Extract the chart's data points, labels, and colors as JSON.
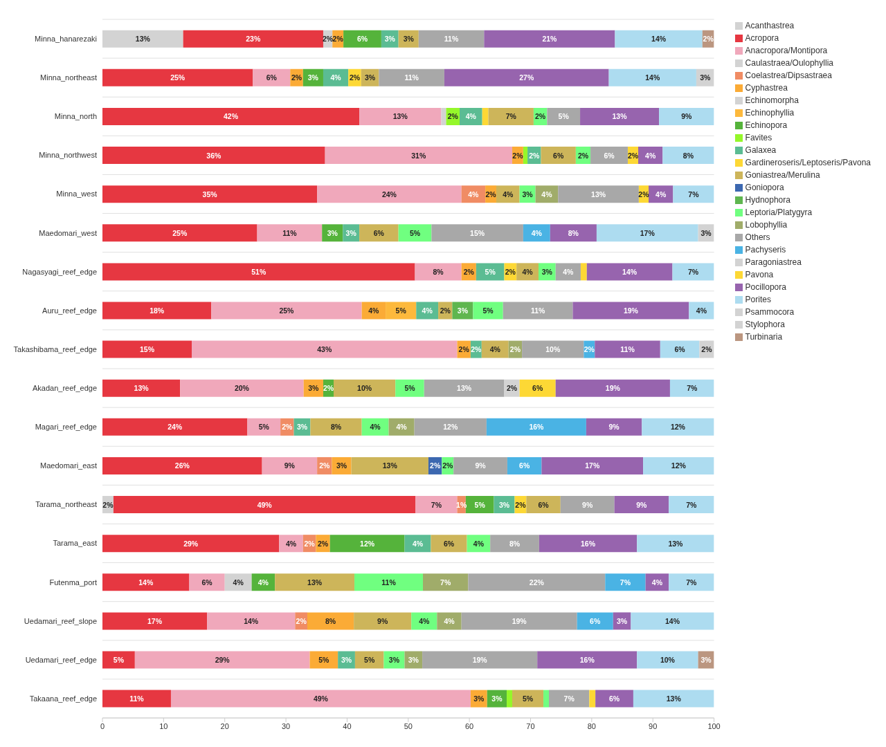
{
  "chart_data": {
    "type": "bar",
    "orientation": "horizontal",
    "stacked": true,
    "legend": "right",
    "grid": "y",
    "categories": [
      "Minna_hanarezaki",
      "Minna_northeast",
      "Minna_north",
      "Minna_northwest",
      "Minna_west",
      "Maedomari_west",
      "Nagasyagi_reef_edge",
      "Auru_reef_edge",
      "Takashibama_reef_edge",
      "Akadan_reef_edge",
      "Magari_reef_edge",
      "Maedomari_east",
      "Tarama_northeast",
      "Tarama_east",
      "Futenma_port",
      "Uedamari_reef_slope",
      "Uedamari_reef_edge",
      "Takaana_reef_edge"
    ],
    "xlim": [
      0,
      100
    ],
    "xticks": [
      0,
      10,
      20,
      30,
      40,
      50,
      60,
      70,
      80,
      90,
      100
    ],
    "series": [
      {
        "name": "Acanthastrea",
        "color": "#d3d3d3",
        "values": [
          13.2,
          null,
          null,
          null,
          null,
          null,
          null,
          null,
          null,
          null,
          null,
          null,
          1.8,
          null,
          null,
          null,
          null,
          null
        ],
        "value_labels": [
          "13%",
          null,
          null,
          null,
          null,
          null,
          null,
          null,
          null,
          null,
          null,
          null,
          "2%",
          null,
          null,
          null,
          null,
          null
        ]
      },
      {
        "name": "Acropora",
        "color": "#e63741",
        "values": [
          22.9,
          24.6,
          42.0,
          36.4,
          35.1,
          25.3,
          51.1,
          17.8,
          14.6,
          12.7,
          23.7,
          26.1,
          49.4,
          28.9,
          14.2,
          17.1,
          5.3,
          11.2
        ],
        "value_labels": [
          "23%",
          "25%",
          "42%",
          "36%",
          "35%",
          "25%",
          "51%",
          "18%",
          "15%",
          "13%",
          "24%",
          "26%",
          "49%",
          "29%",
          "14%",
          "17%",
          "5%",
          "11%"
        ]
      },
      {
        "name": "Anacropora/Montipora",
        "color": "#f0a8bb",
        "values": [
          null,
          6.1,
          13.4,
          30.6,
          23.6,
          10.6,
          7.6,
          24.6,
          43.4,
          20.2,
          5.4,
          9.0,
          6.8,
          3.9,
          5.8,
          14.4,
          28.6,
          49.0
        ],
        "value_labels": [
          null,
          "6%",
          "13%",
          "31%",
          "24%",
          "11%",
          "8%",
          "25%",
          "43%",
          "20%",
          "5%",
          "9%",
          "7%",
          "4%",
          "6%",
          "14%",
          "29%",
          "49%"
        ]
      },
      {
        "name": "Caulastraea/Oulophyllia",
        "color": "#d3d3d3",
        "values": [
          1.5,
          null,
          0.8,
          null,
          null,
          null,
          null,
          null,
          null,
          null,
          null,
          null,
          null,
          null,
          4.4,
          null,
          null,
          null
        ],
        "value_labels": [
          "2%",
          null,
          null,
          null,
          null,
          null,
          null,
          null,
          null,
          null,
          null,
          null,
          null,
          null,
          "4%",
          null,
          null,
          null
        ]
      },
      {
        "name": "Coelastrea/Dipsastraea",
        "color": "#f08c64",
        "values": [
          null,
          null,
          null,
          null,
          3.9,
          null,
          null,
          null,
          null,
          null,
          2.2,
          2.4,
          1.4,
          2.1,
          null,
          2.0,
          null,
          null
        ],
        "value_labels": [
          null,
          null,
          null,
          null,
          "4%",
          null,
          null,
          null,
          null,
          null,
          "2%",
          "2%",
          "1%",
          "2%",
          null,
          "2%",
          null,
          null
        ]
      },
      {
        "name": "Cyphastrea",
        "color": "#fbab36",
        "values": [
          1.8,
          2.1,
          null,
          1.8,
          1.8,
          null,
          2.4,
          3.9,
          2.2,
          3.2,
          null,
          3.2,
          null,
          2.3,
          null,
          7.6,
          4.6,
          2.7
        ],
        "value_labels": [
          "2%",
          "2%",
          null,
          "2%",
          "2%",
          null,
          "2%",
          "4%",
          "2%",
          "3%",
          null,
          "3%",
          null,
          "2%",
          null,
          "8%",
          "5%",
          "3%"
        ]
      },
      {
        "name": "Echinomorpha",
        "color": "#d3d3d3",
        "values": [
          null,
          null,
          null,
          null,
          null,
          null,
          null,
          null,
          null,
          null,
          null,
          null,
          null,
          null,
          null,
          null,
          null,
          null
        ],
        "value_labels": [
          null,
          null,
          null,
          null,
          null,
          null,
          null,
          null,
          null,
          null,
          null,
          null,
          null,
          null,
          null,
          null,
          null,
          null
        ]
      },
      {
        "name": "Echinophyllia",
        "color": "#fdb93c",
        "values": [
          null,
          null,
          null,
          null,
          null,
          null,
          null,
          5.0,
          null,
          null,
          null,
          null,
          null,
          null,
          null,
          null,
          null,
          null
        ],
        "value_labels": [
          null,
          null,
          null,
          null,
          null,
          null,
          null,
          "5%",
          null,
          null,
          null,
          null,
          null,
          null,
          null,
          null,
          null,
          null
        ]
      },
      {
        "name": "Echinopora",
        "color": "#55b33b",
        "values": [
          6.2,
          3.3,
          null,
          null,
          null,
          3.4,
          null,
          null,
          null,
          1.7,
          null,
          null,
          4.6,
          12.2,
          3.8,
          null,
          null,
          3.2
        ],
        "value_labels": [
          "6%",
          "3%",
          null,
          null,
          null,
          "3%",
          null,
          null,
          null,
          "2%",
          null,
          null,
          "5%",
          "12%",
          "4%",
          null,
          null,
          "3%"
        ]
      },
      {
        "name": "Favites",
        "color": "#95f72a",
        "values": [
          null,
          null,
          2.2,
          0.7,
          null,
          null,
          null,
          null,
          null,
          null,
          null,
          null,
          null,
          null,
          null,
          null,
          null,
          0.9
        ],
        "value_labels": [
          null,
          null,
          "2%",
          null,
          null,
          null,
          null,
          null,
          null,
          null,
          null,
          null,
          null,
          null,
          null,
          null,
          null,
          null
        ]
      },
      {
        "name": "Galaxea",
        "color": "#5bbc93",
        "values": [
          2.8,
          4.1,
          3.7,
          2.2,
          null,
          2.7,
          4.6,
          3.6,
          1.8,
          null,
          2.7,
          null,
          3.4,
          4.3,
          null,
          null,
          2.8,
          null
        ],
        "value_labels": [
          "3%",
          "4%",
          "4%",
          "2%",
          null,
          "3%",
          "5%",
          "4%",
          "2%",
          null,
          "3%",
          null,
          "3%",
          "4%",
          null,
          null,
          "3%",
          null
        ]
      },
      {
        "name": "Gardineroseris/Leptoseris/Pavona",
        "color": "#fdd835",
        "values": [
          null,
          2.1,
          1.0,
          null,
          null,
          null,
          2.0,
          null,
          null,
          null,
          null,
          null,
          1.9,
          null,
          null,
          null,
          null,
          null
        ],
        "value_labels": [
          null,
          "2%",
          null,
          null,
          null,
          null,
          "2%",
          null,
          null,
          null,
          null,
          null,
          "2%",
          null,
          null,
          null,
          null,
          null
        ]
      },
      {
        "name": "Goniastrea/Merulina",
        "color": "#cdb55a",
        "values": [
          3.3,
          2.9,
          7.4,
          5.7,
          3.8,
          6.4,
          3.6,
          2.3,
          4.4,
          10.1,
          8.4,
          12.6,
          5.6,
          5.9,
          13.0,
          9.4,
          4.7,
          5.1
        ],
        "value_labels": [
          "3%",
          "3%",
          "7%",
          "6%",
          "4%",
          "6%",
          "4%",
          "2%",
          "4%",
          "10%",
          "8%",
          "13%",
          "6%",
          "6%",
          "13%",
          "9%",
          "5%",
          "5%"
        ]
      },
      {
        "name": "Goniopora",
        "color": "#3c68b0",
        "values": [
          null,
          null,
          null,
          null,
          null,
          null,
          null,
          null,
          null,
          null,
          null,
          2.2,
          null,
          null,
          null,
          null,
          null,
          null
        ],
        "value_labels": [
          null,
          null,
          null,
          null,
          null,
          null,
          null,
          null,
          null,
          null,
          null,
          "2%",
          null,
          null,
          null,
          null,
          null,
          null
        ]
      },
      {
        "name": "Hydnophora",
        "color": "#5fb64f",
        "values": [
          null,
          null,
          null,
          null,
          null,
          null,
          null,
          3.4,
          null,
          null,
          null,
          null,
          null,
          null,
          null,
          null,
          null,
          null
        ],
        "value_labels": [
          null,
          null,
          null,
          null,
          null,
          null,
          null,
          "3%",
          null,
          null,
          null,
          null,
          null,
          null,
          null,
          null,
          null,
          null
        ]
      },
      {
        "name": "Leptoria/Platygyra",
        "color": "#70ff80",
        "values": [
          null,
          null,
          2.2,
          2.4,
          2.6,
          5.4,
          2.8,
          4.9,
          null,
          4.7,
          4.4,
          1.9,
          null,
          3.8,
          11.2,
          4.2,
          3.4,
          0.9
        ],
        "value_labels": [
          null,
          null,
          "2%",
          "2%",
          "3%",
          "5%",
          "3%",
          "5%",
          null,
          "5%",
          "4%",
          "2%",
          null,
          "4%",
          "11%",
          "4%",
          "3%",
          null
        ]
      },
      {
        "name": "Lobophyllia",
        "color": "#a0ac6a",
        "values": [
          null,
          null,
          null,
          null,
          3.7,
          null,
          null,
          null,
          2.2,
          null,
          4.2,
          null,
          null,
          null,
          7.4,
          4.0,
          2.9,
          null
        ],
        "value_labels": [
          null,
          null,
          null,
          null,
          "4%",
          null,
          null,
          null,
          "2%",
          null,
          "4%",
          null,
          null,
          null,
          "7%",
          "4%",
          "3%",
          null
        ]
      },
      {
        "name": "Others",
        "color": "#a8a8a8",
        "values": [
          10.7,
          10.7,
          5.4,
          6.1,
          13.2,
          15.0,
          4.1,
          11.4,
          10.1,
          13.1,
          11.8,
          8.8,
          8.8,
          8.0,
          22.4,
          18.9,
          18.8,
          6.6
        ],
        "value_labels": [
          "11%",
          "11%",
          "5%",
          "6%",
          "13%",
          "15%",
          "4%",
          "11%",
          "10%",
          "13%",
          "12%",
          "9%",
          "9%",
          "8%",
          "22%",
          "19%",
          "19%",
          "7%"
        ]
      },
      {
        "name": "Pachyseris",
        "color": "#4ab3e4",
        "values": [
          null,
          null,
          null,
          null,
          null,
          4.4,
          null,
          null,
          1.8,
          null,
          16.3,
          5.6,
          null,
          null,
          6.6,
          5.9,
          null,
          null
        ],
        "value_labels": [
          null,
          null,
          null,
          null,
          null,
          "4%",
          null,
          null,
          "2%",
          null,
          "16%",
          "6%",
          null,
          null,
          "7%",
          "6%",
          null,
          null
        ]
      },
      {
        "name": "Paragoniastrea",
        "color": "#d3d3d3",
        "values": [
          null,
          null,
          null,
          null,
          null,
          null,
          null,
          null,
          null,
          2.5,
          null,
          null,
          null,
          null,
          null,
          null,
          null,
          null
        ],
        "value_labels": [
          null,
          null,
          null,
          null,
          null,
          null,
          null,
          null,
          null,
          "2%",
          null,
          null,
          null,
          null,
          null,
          null,
          null,
          null
        ]
      },
      {
        "name": "Pavona",
        "color": "#fdd835",
        "values": [
          null,
          null,
          null,
          1.7,
          1.6,
          null,
          1.0,
          null,
          null,
          5.9,
          null,
          null,
          null,
          null,
          null,
          null,
          null,
          1.0
        ],
        "value_labels": [
          null,
          null,
          null,
          "2%",
          "2%",
          null,
          null,
          null,
          null,
          "6%",
          null,
          null,
          null,
          null,
          null,
          null,
          null,
          null
        ]
      },
      {
        "name": "Pocillopora",
        "color": "#9764ae",
        "values": [
          21.4,
          26.9,
          12.9,
          4.0,
          4.0,
          7.6,
          14.0,
          19.0,
          10.7,
          18.7,
          9.1,
          16.6,
          8.9,
          16.0,
          3.8,
          2.9,
          16.3,
          6.2
        ],
        "value_labels": [
          "21%",
          "27%",
          "13%",
          "4%",
          "4%",
          "8%",
          "14%",
          "19%",
          "11%",
          "19%",
          "9%",
          "17%",
          "9%",
          "16%",
          "4%",
          "3%",
          "16%",
          "6%"
        ]
      },
      {
        "name": "Porites",
        "color": "#addcf0",
        "values": [
          14.3,
          14.3,
          9.0,
          8.4,
          6.7,
          16.6,
          6.8,
          4.1,
          6.4,
          7.2,
          11.8,
          11.6,
          7.4,
          12.6,
          7.4,
          13.6,
          10.0,
          13.2
        ],
        "value_labels": [
          "14%",
          "14%",
          "9%",
          "8%",
          "7%",
          "17%",
          "7%",
          "4%",
          "6%",
          "7%",
          "12%",
          "12%",
          "7%",
          "13%",
          "7%",
          "14%",
          "10%",
          "13%"
        ]
      },
      {
        "name": "Psammocora",
        "color": "#d3d3d3",
        "values": [
          null,
          null,
          null,
          null,
          null,
          null,
          null,
          null,
          null,
          null,
          null,
          null,
          null,
          null,
          null,
          null,
          null,
          null
        ],
        "value_labels": [
          null,
          null,
          null,
          null,
          null,
          null,
          null,
          null,
          null,
          null,
          null,
          null,
          null,
          null,
          null,
          null,
          null,
          null
        ]
      },
      {
        "name": "Stylophora",
        "color": "#d3d3d3",
        "values": [
          null,
          2.9,
          null,
          null,
          null,
          2.6,
          null,
          null,
          2.4,
          null,
          null,
          null,
          null,
          null,
          null,
          null,
          null,
          null
        ],
        "value_labels": [
          null,
          "3%",
          null,
          null,
          null,
          "3%",
          null,
          null,
          "2%",
          null,
          null,
          null,
          null,
          null,
          null,
          null,
          null,
          null
        ]
      },
      {
        "name": "Turbinaria",
        "color": "#bb9680",
        "values": [
          1.9,
          null,
          null,
          null,
          null,
          null,
          null,
          null,
          null,
          null,
          null,
          null,
          null,
          null,
          null,
          null,
          2.6,
          null
        ],
        "value_labels": [
          "2%",
          null,
          null,
          null,
          null,
          null,
          null,
          null,
          null,
          null,
          null,
          null,
          null,
          null,
          null,
          null,
          "3%",
          null
        ]
      }
    ]
  }
}
